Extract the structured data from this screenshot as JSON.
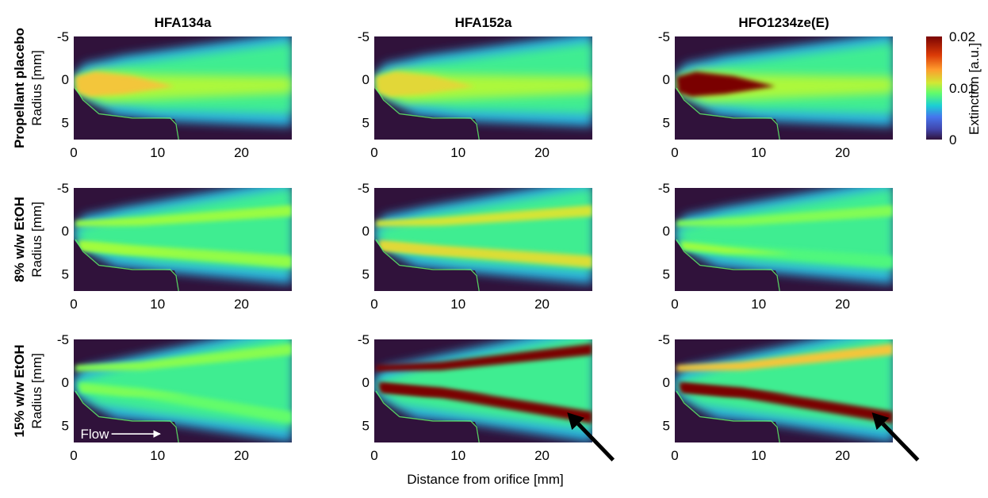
{
  "chart_data": {
    "type": "heatmap",
    "columns": [
      "HFA134a",
      "HFA152a",
      "HFO1234ze(E)"
    ],
    "rows": [
      "Propellant placebo",
      "8% w/w EtOH",
      "15% w/w EtOH"
    ],
    "xlabel": "Distance from orifice [mm]",
    "ylabel": "Radius [mm]",
    "xlim": [
      0,
      26
    ],
    "ylim": [
      -5,
      7
    ],
    "xticks": [
      0,
      10,
      20
    ],
    "yticks": [
      -5,
      0,
      5
    ],
    "colorbar": {
      "label": "Extinction [a.u.]",
      "range": [
        0,
        0.02
      ],
      "ticks": [
        "0",
        "0.01",
        "0.02"
      ],
      "colormap": "turbo"
    },
    "annotation": {
      "text": "Flow",
      "panel": [
        2,
        0
      ]
    },
    "arrows": [
      {
        "panel": [
          2,
          1
        ],
        "points_to_x": 23,
        "points_to_y": 3.5
      },
      {
        "panel": [
          2,
          2
        ],
        "points_to_x": 23.5,
        "points_to_y": 3.5
      }
    ],
    "panels": [
      [
        {
          "peak": 0.018,
          "upper_intensity": 0.6,
          "lower_intensity": 0.9,
          "single_core": true
        },
        {
          "peak": 0.017,
          "upper_intensity": 0.7,
          "lower_intensity": 0.85,
          "single_core": true
        },
        {
          "peak": 0.022,
          "upper_intensity": 0.7,
          "lower_intensity": 0.9,
          "single_core": true
        }
      ],
      [
        {
          "peak": 0.014,
          "upper_intensity": 0.55,
          "lower_intensity": 0.75,
          "single_core": false
        },
        {
          "peak": 0.017,
          "upper_intensity": 0.6,
          "lower_intensity": 0.8,
          "single_core": false
        },
        {
          "peak": 0.014,
          "upper_intensity": 0.5,
          "lower_intensity": 0.6,
          "single_core": false
        }
      ],
      [
        {
          "peak": 0.013,
          "upper_intensity": 0.55,
          "lower_intensity": 0.7,
          "single_core": false
        },
        {
          "peak": 0.022,
          "upper_intensity": 0.65,
          "lower_intensity": 1.0,
          "single_core": false
        },
        {
          "peak": 0.02,
          "upper_intensity": 0.6,
          "lower_intensity": 0.95,
          "single_core": false
        }
      ]
    ]
  }
}
